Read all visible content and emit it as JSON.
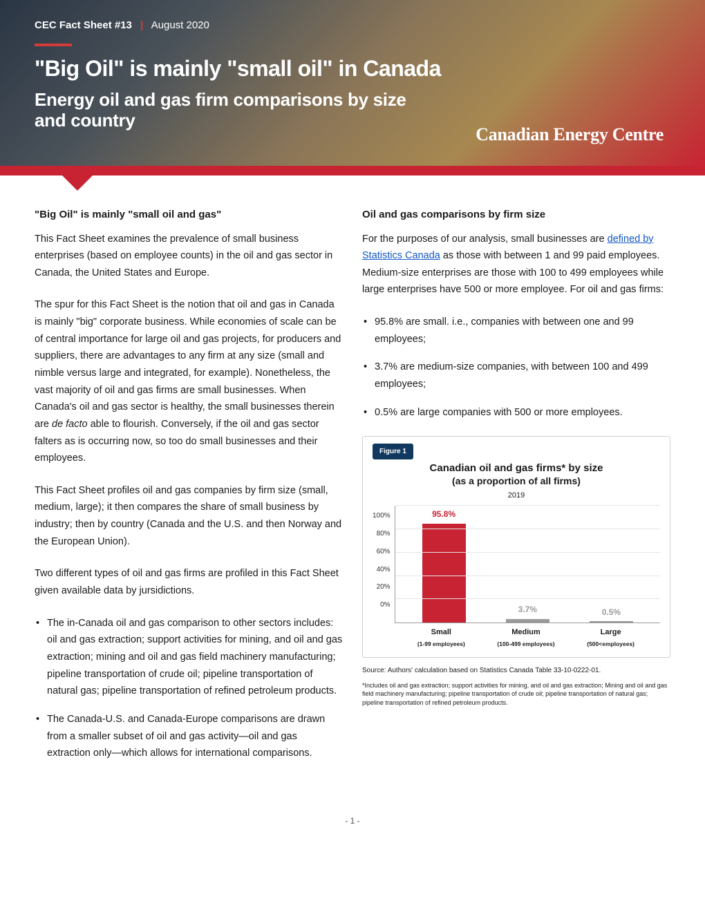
{
  "hero": {
    "series": "CEC Fact Sheet",
    "number": "#13",
    "date": "August 2020",
    "title": "\"Big Oil\" is mainly \"small oil\" in Canada",
    "subtitle": "Energy oil and gas firm comparisons by size and country",
    "brand": "Canadian Energy Centre"
  },
  "left": {
    "heading": "\"Big Oil\" is mainly \"small oil and gas\"",
    "p1": "This Fact Sheet examines the prevalence of small business enterprises (based on employee counts) in the oil and gas sector in Canada, the United States and Europe.",
    "p2_a": "The spur for this Fact Sheet is the notion that oil and gas in Canada is mainly \"big\" corporate business. While economies of scale can be of central importance for large oil and gas projects, for producers and suppliers, there are advantages to any firm at any size (small and nimble versus large and integrated, for example). Nonetheless, the vast majority of oil and gas firms are small businesses. When Canada's oil and gas sector is healthy, the small businesses therein are ",
    "p2_i": "de facto",
    "p2_b": " able to flourish. Conversely, if the oil and gas sector falters as is occurring now, so too do small businesses and their employees.",
    "p3": "This Fact Sheet profiles oil and gas companies by firm size (small, medium, large); it then compares the share of small business by industry; then by country (Canada and the U.S. and then Norway and the European Union).",
    "p4": "Two different types of oil and gas firms are profiled in this Fact Sheet given available data by jursidictions.",
    "b1": "The in-Canada oil and gas comparison to other sectors includes: oil and gas extraction; support activities for mining, and oil and gas extraction; mining and oil and gas field machinery manufacturing; pipeline transportation of crude oil; pipeline transportation of natural gas; pipeline transportation of refined petroleum products.",
    "b2": "The Canada-U.S. and Canada-Europe comparisons are drawn from a smaller subset of oil and gas activity—oil and gas extraction only—which allows for international comparisons."
  },
  "right": {
    "heading": "Oil and gas comparisons by firm size",
    "p1_a": "For the purposes of our analysis, small businesses are ",
    "p1_link": "defined by Statistics Canada",
    "p1_b": " as those with between 1 and 99 paid employees. Medium-size enterprises are those with 100 to 499 employees while large enterprises have 500 or more employee. For oil and gas firms:",
    "b1": "95.8% are small. i.e., companies with between one and 99 employees;",
    "b2": "3.7% are medium-size companies, with between 100 and 499 employees;",
    "b3": "0.5% are large companies with 500 or more employees."
  },
  "figure1": {
    "label": "Figure 1",
    "title": "Canadian oil and gas firms* by size",
    "subtitle": "(as a proportion of all firms)",
    "year": "2019",
    "type": "bar",
    "ylim": [
      0,
      100
    ],
    "ytick_step": 20,
    "yticks": [
      "100%",
      "80%",
      "60%",
      "40%",
      "20%",
      "0%"
    ],
    "categories": [
      {
        "label": "Small",
        "sub": "(1-99 employees)",
        "value": 95.8,
        "display": "95.8%",
        "color": "#c82333"
      },
      {
        "label": "Medium",
        "sub": "(100-499 employees)",
        "value": 3.7,
        "display": "3.7%",
        "color": "#9a9a9a"
      },
      {
        "label": "Large",
        "sub": "(500<employees)",
        "value": 0.5,
        "display": "0.5%",
        "color": "#9a9a9a"
      }
    ],
    "grid_color": "#e5e5e5",
    "axis_color": "#999999",
    "source": "Source: Authors' calculation based on Statistics Canada Table 33-10-0222-01.",
    "note": "*Includes oil and gas extraction; support activities for mining, and oil and gas extraction; Mining and oil and gas field machinery manufacturing; pipeline transportation of crude oil; pipeline transportation of natural gas; pipeline transportation of refined petroleum products."
  },
  "page": "- 1 -"
}
